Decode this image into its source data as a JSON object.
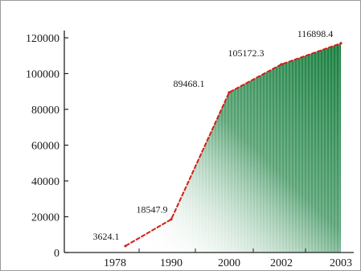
{
  "chart_data": {
    "type": "area",
    "title": "",
    "xlabel": "",
    "ylabel": "",
    "categories": [
      "1978",
      "1990",
      "2000",
      "2002",
      "2003"
    ],
    "values": [
      3624.1,
      18547.9,
      89468.1,
      105172.3,
      116898.4
    ],
    "data_labels": [
      "3624.1",
      "18547.9",
      "89468.1",
      "105172.3",
      "116898.4"
    ],
    "y_ticks": [
      "0",
      "20000",
      "40000",
      "60000",
      "80000",
      "100000",
      "120000"
    ],
    "ylim": [
      0,
      120000
    ],
    "grid": false,
    "colors": {
      "line": "#d21f16",
      "fill_dark": "#137c3b",
      "fill_light": "#ffffff",
      "axis": "#222222"
    }
  }
}
